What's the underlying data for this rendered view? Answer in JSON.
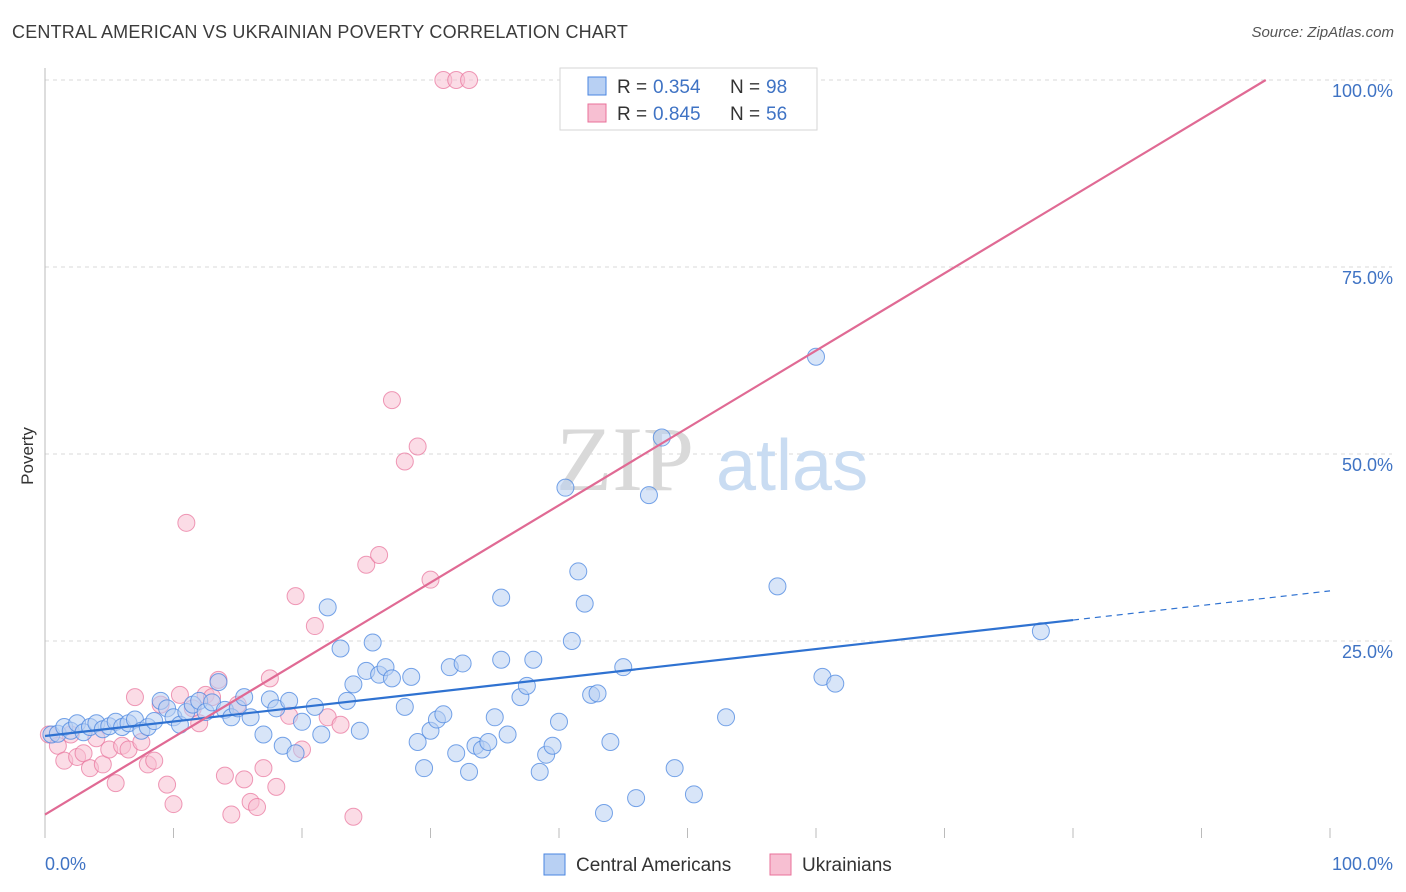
{
  "header": {
    "title": "CENTRAL AMERICAN VS UKRAINIAN POVERTY CORRELATION CHART",
    "source": "Source: ZipAtlas.com"
  },
  "colors": {
    "blue": "#4a86e0",
    "blue_fill": "#b8d0f3",
    "pink": "#e8709a",
    "pink_fill": "#f7bfd2",
    "grid": "#d8d8d8",
    "tick": "#3f73c4"
  },
  "chart_data": {
    "type": "scatter",
    "title": "CENTRAL AMERICAN VS UKRAINIAN POVERTY CORRELATION CHART",
    "xlabel": "",
    "ylabel": "Poverty",
    "xlim": [
      0,
      100
    ],
    "ylim": [
      0,
      100
    ],
    "x_tick_labels": [
      "0.0%",
      "100.0%"
    ],
    "y_tick_labels": [
      "100.0%",
      "75.0%",
      "50.0%",
      "25.0%"
    ],
    "y_tick_values": [
      100,
      75,
      50,
      25
    ],
    "legend": {
      "entries": [
        {
          "r_label": "R =",
          "r_value": "0.354",
          "n_label": "N =",
          "n_value": "98"
        },
        {
          "r_label": "R =",
          "r_value": "0.845",
          "n_label": "N =",
          "n_value": "56"
        }
      ],
      "bottom": [
        "Central Americans",
        "Ukrainians"
      ]
    },
    "watermark": {
      "part1": "ZIP",
      "part2": "atlas"
    },
    "series": [
      {
        "name": "Central Americans",
        "trend": {
          "x0": 0,
          "y0": 12.3,
          "x1": 80,
          "y1": 27.8,
          "dash_to_x": 100,
          "dash_to_y": 31.7
        },
        "points": [
          [
            0.5,
            12.5
          ],
          [
            1,
            12.6
          ],
          [
            1.5,
            13.5
          ],
          [
            2,
            13
          ],
          [
            2.5,
            14
          ],
          [
            3,
            12.8
          ],
          [
            3.5,
            13.5
          ],
          [
            4,
            14
          ],
          [
            4.5,
            13.2
          ],
          [
            5,
            13.6
          ],
          [
            5.5,
            14.2
          ],
          [
            6,
            13.5
          ],
          [
            6.5,
            14
          ],
          [
            7,
            14.5
          ],
          [
            7.5,
            13
          ],
          [
            8,
            13.5
          ],
          [
            8.5,
            14.3
          ],
          [
            9,
            17
          ],
          [
            9.5,
            16
          ],
          [
            10,
            14.8
          ],
          [
            10.5,
            13.8
          ],
          [
            11,
            15.5
          ],
          [
            11.5,
            16.5
          ],
          [
            12,
            17
          ],
          [
            12.5,
            15.5
          ],
          [
            13,
            16.8
          ],
          [
            13.5,
            19.5
          ],
          [
            14,
            15.8
          ],
          [
            14.5,
            14.8
          ],
          [
            15,
            16
          ],
          [
            15.5,
            17.5
          ],
          [
            16,
            14.8
          ],
          [
            17,
            12.5
          ],
          [
            17.5,
            17.2
          ],
          [
            18,
            16
          ],
          [
            18.5,
            11
          ],
          [
            19,
            17
          ],
          [
            19.5,
            10
          ],
          [
            20,
            14.2
          ],
          [
            21,
            16.2
          ],
          [
            21.5,
            12.5
          ],
          [
            22,
            29.5
          ],
          [
            23,
            24
          ],
          [
            23.5,
            17
          ],
          [
            24,
            19.2
          ],
          [
            24.5,
            13
          ],
          [
            25,
            21
          ],
          [
            25.5,
            24.8
          ],
          [
            26,
            20.5
          ],
          [
            26.5,
            21.5
          ],
          [
            27,
            20
          ],
          [
            28,
            16.2
          ],
          [
            28.5,
            20.2
          ],
          [
            29,
            11.5
          ],
          [
            29.5,
            8
          ],
          [
            30,
            13
          ],
          [
            30.5,
            14.5
          ],
          [
            31,
            15.2
          ],
          [
            31.5,
            21.5
          ],
          [
            32,
            10
          ],
          [
            32.5,
            22
          ],
          [
            33,
            7.5
          ],
          [
            33.5,
            11
          ],
          [
            34,
            10.5
          ],
          [
            34.5,
            11.5
          ],
          [
            35,
            14.8
          ],
          [
            35.5,
            22.5
          ],
          [
            35.5,
            30.8
          ],
          [
            36,
            12.5
          ],
          [
            37,
            17.5
          ],
          [
            37.5,
            19
          ],
          [
            38,
            22.5
          ],
          [
            38.5,
            7.5
          ],
          [
            39,
            9.8
          ],
          [
            39.5,
            11
          ],
          [
            40,
            14.2
          ],
          [
            40.5,
            45.5
          ],
          [
            41,
            25
          ],
          [
            41.5,
            34.3
          ],
          [
            42,
            30
          ],
          [
            42.5,
            17.8
          ],
          [
            43,
            18
          ],
          [
            43.5,
            2
          ],
          [
            44,
            11.5
          ],
          [
            45,
            21.5
          ],
          [
            46,
            4
          ],
          [
            47,
            44.5
          ],
          [
            48,
            52.2
          ],
          [
            49,
            8
          ],
          [
            50.5,
            4.5
          ],
          [
            53,
            14.8
          ],
          [
            57,
            32.3
          ],
          [
            60,
            63
          ],
          [
            60.5,
            20.2
          ],
          [
            61.5,
            19.3
          ],
          [
            77.5,
            26.3
          ]
        ]
      },
      {
        "name": "Ukrainians",
        "trend": {
          "x0": 0,
          "y0": 1.8,
          "x1": 95,
          "y1": 100
        },
        "points": [
          [
            0.3,
            12.5
          ],
          [
            1,
            11
          ],
          [
            1.5,
            9
          ],
          [
            2,
            12.5
          ],
          [
            2.5,
            9.5
          ],
          [
            3,
            10
          ],
          [
            3.5,
            8
          ],
          [
            4,
            12
          ],
          [
            4.5,
            8.5
          ],
          [
            5,
            10.5
          ],
          [
            5.5,
            6
          ],
          [
            6,
            11
          ],
          [
            6.5,
            10.5
          ],
          [
            7,
            17.5
          ],
          [
            7.5,
            11.5
          ],
          [
            8,
            8.5
          ],
          [
            8.5,
            9
          ],
          [
            9,
            16.5
          ],
          [
            9.5,
            5.8
          ],
          [
            10,
            3.2
          ],
          [
            10.5,
            17.8
          ],
          [
            11,
            40.8
          ],
          [
            11.5,
            16
          ],
          [
            12,
            14
          ],
          [
            12.5,
            17.8
          ],
          [
            13,
            17.5
          ],
          [
            13.5,
            19.8
          ],
          [
            14,
            7
          ],
          [
            14.5,
            1.8
          ],
          [
            15,
            16.5
          ],
          [
            15.5,
            6.5
          ],
          [
            16,
            3.5
          ],
          [
            16.5,
            2.8
          ],
          [
            17,
            8
          ],
          [
            17.5,
            20
          ],
          [
            18,
            5.5
          ],
          [
            19,
            15
          ],
          [
            19.5,
            31
          ],
          [
            20,
            10.5
          ],
          [
            21,
            27
          ],
          [
            22,
            14.8
          ],
          [
            23,
            13.8
          ],
          [
            24,
            1.5
          ],
          [
            25,
            35.2
          ],
          [
            26,
            36.5
          ],
          [
            27,
            57.2
          ],
          [
            28,
            49
          ],
          [
            29,
            51
          ],
          [
            30,
            33.2
          ],
          [
            31,
            100
          ],
          [
            32,
            100
          ],
          [
            33,
            100
          ]
        ]
      }
    ]
  }
}
